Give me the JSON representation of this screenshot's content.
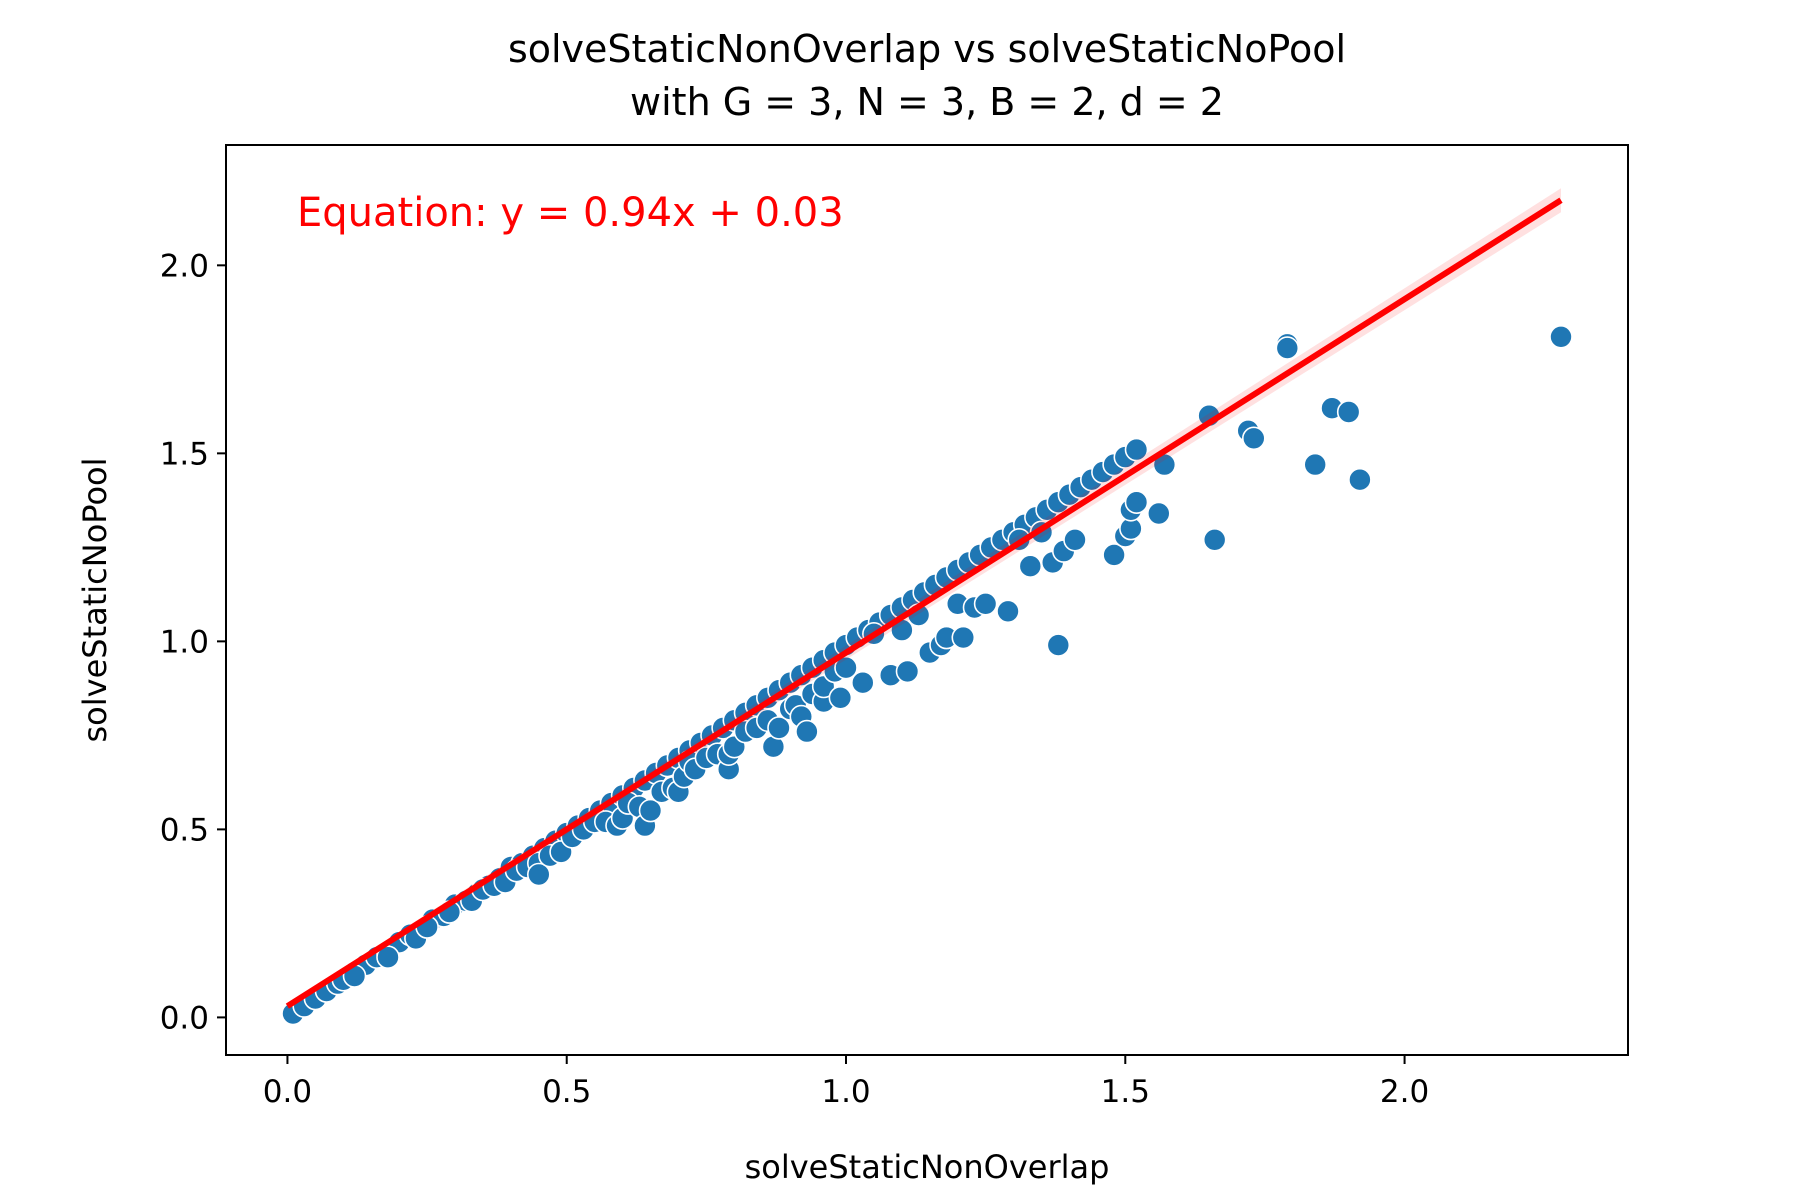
{
  "chart_data": {
    "type": "scatter",
    "title": "solveStaticNonOverlap vs solveStaticNoPool",
    "subtitle": "with G = 3, N = 3, B = 2, d = 2",
    "xlabel": "solveStaticNonOverlap",
    "ylabel": "solveStaticNoPool",
    "xlim": [
      -0.11,
      2.4
    ],
    "ylim": [
      -0.1,
      2.32
    ],
    "xticks": [
      "0.0",
      "0.5",
      "1.0",
      "1.5",
      "2.0"
    ],
    "yticks": [
      "0.0",
      "0.5",
      "1.0",
      "1.5",
      "2.0"
    ],
    "xtick_values": [
      0.0,
      0.5,
      1.0,
      1.5,
      2.0
    ],
    "ytick_values": [
      0.0,
      0.5,
      1.0,
      1.5,
      2.0
    ],
    "grid": false,
    "annotation": "Equation: y = 0.94x + 0.03",
    "regression": {
      "slope": 0.94,
      "intercept": 0.03,
      "x_range": [
        0.0,
        2.28
      ]
    },
    "colors": {
      "points": "#1f77b4",
      "point_edge": "#ffffff",
      "fit_line": "#ff0000",
      "annotation": "#ff0000"
    },
    "points": [
      [
        0.01,
        0.01
      ],
      [
        0.03,
        0.03
      ],
      [
        0.05,
        0.05
      ],
      [
        0.07,
        0.07
      ],
      [
        0.09,
        0.09
      ],
      [
        0.1,
        0.1
      ],
      [
        0.12,
        0.12
      ],
      [
        0.14,
        0.14
      ],
      [
        0.16,
        0.16
      ],
      [
        0.18,
        0.17
      ],
      [
        0.2,
        0.2
      ],
      [
        0.22,
        0.22
      ],
      [
        0.24,
        0.23
      ],
      [
        0.26,
        0.26
      ],
      [
        0.28,
        0.27
      ],
      [
        0.3,
        0.3
      ],
      [
        0.32,
        0.31
      ],
      [
        0.34,
        0.33
      ],
      [
        0.36,
        0.35
      ],
      [
        0.38,
        0.37
      ],
      [
        0.4,
        0.4
      ],
      [
        0.42,
        0.41
      ],
      [
        0.44,
        0.43
      ],
      [
        0.46,
        0.45
      ],
      [
        0.48,
        0.47
      ],
      [
        0.5,
        0.49
      ],
      [
        0.52,
        0.51
      ],
      [
        0.54,
        0.53
      ],
      [
        0.56,
        0.55
      ],
      [
        0.58,
        0.57
      ],
      [
        0.6,
        0.59
      ],
      [
        0.62,
        0.61
      ],
      [
        0.64,
        0.63
      ],
      [
        0.66,
        0.65
      ],
      [
        0.68,
        0.67
      ],
      [
        0.7,
        0.69
      ],
      [
        0.72,
        0.71
      ],
      [
        0.74,
        0.73
      ],
      [
        0.76,
        0.75
      ],
      [
        0.78,
        0.77
      ],
      [
        0.8,
        0.79
      ],
      [
        0.82,
        0.81
      ],
      [
        0.84,
        0.83
      ],
      [
        0.86,
        0.85
      ],
      [
        0.88,
        0.87
      ],
      [
        0.9,
        0.89
      ],
      [
        0.92,
        0.91
      ],
      [
        0.94,
        0.93
      ],
      [
        0.96,
        0.95
      ],
      [
        0.98,
        0.97
      ],
      [
        1.0,
        0.99
      ],
      [
        1.02,
        1.01
      ],
      [
        1.04,
        1.03
      ],
      [
        1.06,
        1.05
      ],
      [
        1.08,
        1.07
      ],
      [
        1.1,
        1.09
      ],
      [
        1.12,
        1.11
      ],
      [
        1.14,
        1.13
      ],
      [
        1.16,
        1.15
      ],
      [
        1.18,
        1.17
      ],
      [
        1.2,
        1.19
      ],
      [
        1.22,
        1.21
      ],
      [
        1.24,
        1.23
      ],
      [
        1.26,
        1.25
      ],
      [
        1.28,
        1.27
      ],
      [
        1.3,
        1.29
      ],
      [
        1.32,
        1.31
      ],
      [
        1.34,
        1.33
      ],
      [
        1.36,
        1.35
      ],
      [
        1.38,
        1.37
      ],
      [
        1.4,
        1.39
      ],
      [
        1.42,
        1.41
      ],
      [
        1.44,
        1.43
      ],
      [
        1.46,
        1.45
      ],
      [
        1.48,
        1.47
      ],
      [
        1.5,
        1.49
      ],
      [
        1.52,
        1.51
      ],
      [
        0.12,
        0.11
      ],
      [
        0.18,
        0.16
      ],
      [
        0.23,
        0.21
      ],
      [
        0.25,
        0.24
      ],
      [
        0.29,
        0.28
      ],
      [
        0.33,
        0.31
      ],
      [
        0.35,
        0.34
      ],
      [
        0.37,
        0.35
      ],
      [
        0.39,
        0.36
      ],
      [
        0.41,
        0.39
      ],
      [
        0.43,
        0.4
      ],
      [
        0.45,
        0.41
      ],
      [
        0.45,
        0.38
      ],
      [
        0.47,
        0.43
      ],
      [
        0.49,
        0.44
      ],
      [
        0.51,
        0.48
      ],
      [
        0.53,
        0.5
      ],
      [
        0.55,
        0.52
      ],
      [
        0.57,
        0.52
      ],
      [
        0.59,
        0.51
      ],
      [
        0.6,
        0.53
      ],
      [
        0.61,
        0.57
      ],
      [
        0.63,
        0.56
      ],
      [
        0.64,
        0.51
      ],
      [
        0.65,
        0.55
      ],
      [
        0.67,
        0.6
      ],
      [
        0.69,
        0.61
      ],
      [
        0.7,
        0.6
      ],
      [
        0.71,
        0.64
      ],
      [
        0.72,
        0.68
      ],
      [
        0.73,
        0.66
      ],
      [
        0.75,
        0.69
      ],
      [
        0.77,
        0.7
      ],
      [
        0.79,
        0.66
      ],
      [
        0.79,
        0.7
      ],
      [
        0.8,
        0.72
      ],
      [
        0.82,
        0.76
      ],
      [
        0.84,
        0.77
      ],
      [
        0.86,
        0.79
      ],
      [
        0.87,
        0.72
      ],
      [
        0.88,
        0.77
      ],
      [
        0.9,
        0.82
      ],
      [
        0.91,
        0.83
      ],
      [
        0.92,
        0.8
      ],
      [
        0.93,
        0.76
      ],
      [
        0.94,
        0.86
      ],
      [
        0.96,
        0.84
      ],
      [
        0.96,
        0.88
      ],
      [
        0.98,
        0.92
      ],
      [
        0.99,
        0.85
      ],
      [
        1.0,
        0.93
      ],
      [
        1.03,
        0.89
      ],
      [
        1.05,
        1.02
      ],
      [
        1.08,
        0.91
      ],
      [
        1.1,
        1.03
      ],
      [
        1.11,
        0.92
      ],
      [
        1.13,
        1.07
      ],
      [
        1.15,
        0.97
      ],
      [
        1.17,
        0.99
      ],
      [
        1.18,
        1.01
      ],
      [
        1.2,
        1.1
      ],
      [
        1.21,
        1.01
      ],
      [
        1.23,
        1.09
      ],
      [
        1.25,
        1.1
      ],
      [
        1.29,
        1.08
      ],
      [
        1.31,
        1.27
      ],
      [
        1.33,
        1.2
      ],
      [
        1.35,
        1.29
      ],
      [
        1.37,
        1.21
      ],
      [
        1.38,
        0.99
      ],
      [
        1.39,
        1.24
      ],
      [
        1.41,
        1.27
      ],
      [
        1.48,
        1.23
      ],
      [
        1.5,
        1.28
      ],
      [
        1.51,
        1.3
      ],
      [
        1.51,
        1.35
      ],
      [
        1.52,
        1.37
      ],
      [
        1.56,
        1.34
      ],
      [
        1.57,
        1.47
      ],
      [
        1.65,
        1.6
      ],
      [
        1.66,
        1.27
      ],
      [
        1.72,
        1.56
      ],
      [
        1.73,
        1.54
      ],
      [
        1.79,
        1.79
      ],
      [
        1.79,
        1.78
      ],
      [
        1.84,
        1.47
      ],
      [
        1.87,
        1.62
      ],
      [
        1.9,
        1.61
      ],
      [
        1.92,
        1.43
      ],
      [
        2.28,
        1.81
      ]
    ]
  }
}
